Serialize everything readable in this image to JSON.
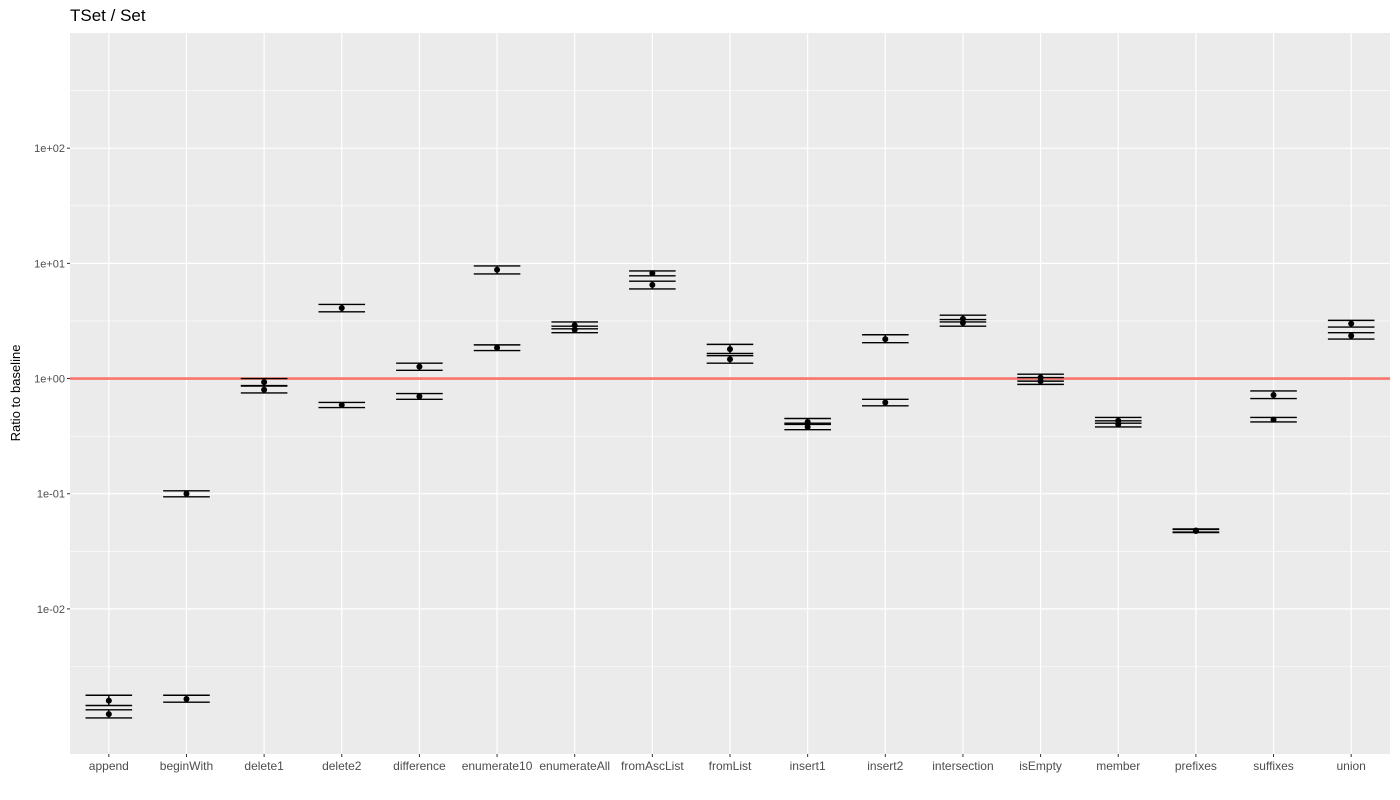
{
  "chart_data": {
    "type": "scatter",
    "title": "TSet / Set",
    "xlabel": "",
    "ylabel": "Ratio to baseline",
    "y_scale": "log10",
    "ylim": [
      0.00055,
      1000
    ],
    "y_ticks": [
      {
        "value": 0.01,
        "label": "1e-02"
      },
      {
        "value": 0.1,
        "label": "1e-01"
      },
      {
        "value": 1,
        "label": "1e+00"
      },
      {
        "value": 10,
        "label": "1e+01"
      },
      {
        "value": 100,
        "label": "1e+02"
      }
    ],
    "grid": true,
    "reference_line": {
      "y": 1,
      "color": "#F8766D"
    },
    "point_color": "#000000",
    "categories": [
      "append",
      "beginWith",
      "delete1",
      "delete2",
      "difference",
      "enumerate10",
      "enumerateAll",
      "fromAscList",
      "fromList",
      "insert1",
      "insert2",
      "intersection",
      "isEmpty",
      "member",
      "prefixes",
      "suffixes",
      "union"
    ],
    "points": [
      {
        "category": "append",
        "y": 0.0016,
        "ymin": 0.00145,
        "ymax": 0.00178
      },
      {
        "category": "append",
        "y": 0.00122,
        "ymin": 0.00113,
        "ymax": 0.00133
      },
      {
        "category": "beginWith",
        "y": 0.1,
        "ymin": 0.094,
        "ymax": 0.106
      },
      {
        "category": "beginWith",
        "y": 0.00165,
        "ymin": 0.00155,
        "ymax": 0.00178
      },
      {
        "category": "delete1",
        "y": 0.93,
        "ymin": 0.87,
        "ymax": 1.0
      },
      {
        "category": "delete1",
        "y": 0.8,
        "ymin": 0.75,
        "ymax": 0.86
      },
      {
        "category": "delete2",
        "y": 4.1,
        "ymin": 3.8,
        "ymax": 4.4
      },
      {
        "category": "delete2",
        "y": 0.59,
        "ymin": 0.56,
        "ymax": 0.62
      },
      {
        "category": "difference",
        "y": 1.27,
        "ymin": 1.18,
        "ymax": 1.36
      },
      {
        "category": "difference",
        "y": 0.7,
        "ymin": 0.66,
        "ymax": 0.74
      },
      {
        "category": "enumerate10",
        "y": 8.8,
        "ymin": 8.1,
        "ymax": 9.5
      },
      {
        "category": "enumerate10",
        "y": 1.85,
        "ymin": 1.75,
        "ymax": 1.96
      },
      {
        "category": "enumerateAll",
        "y": 2.9,
        "ymin": 2.7,
        "ymax": 3.1
      },
      {
        "category": "enumerateAll",
        "y": 2.65,
        "ymin": 2.5,
        "ymax": 2.85
      },
      {
        "category": "fromAscList",
        "y": 8.2,
        "ymin": 7.8,
        "ymax": 8.6
      },
      {
        "category": "fromAscList",
        "y": 6.5,
        "ymin": 6.0,
        "ymax": 7.0
      },
      {
        "category": "fromList",
        "y": 1.8,
        "ymin": 1.65,
        "ymax": 1.98
      },
      {
        "category": "fromList",
        "y": 1.47,
        "ymin": 1.36,
        "ymax": 1.58
      },
      {
        "category": "insert1",
        "y": 0.42,
        "ymin": 0.4,
        "ymax": 0.45
      },
      {
        "category": "insert1",
        "y": 0.38,
        "ymin": 0.36,
        "ymax": 0.41
      },
      {
        "category": "insert2",
        "y": 2.2,
        "ymin": 2.05,
        "ymax": 2.4
      },
      {
        "category": "insert2",
        "y": 0.62,
        "ymin": 0.58,
        "ymax": 0.66
      },
      {
        "category": "intersection",
        "y": 3.3,
        "ymin": 3.1,
        "ymax": 3.55
      },
      {
        "category": "intersection",
        "y": 3.05,
        "ymin": 2.85,
        "ymax": 3.25
      },
      {
        "category": "isEmpty",
        "y": 1.02,
        "ymin": 0.95,
        "ymax": 1.09
      },
      {
        "category": "isEmpty",
        "y": 0.95,
        "ymin": 0.89,
        "ymax": 1.02
      },
      {
        "category": "member",
        "y": 0.43,
        "ymin": 0.41,
        "ymax": 0.46
      },
      {
        "category": "member",
        "y": 0.4,
        "ymin": 0.38,
        "ymax": 0.43
      },
      {
        "category": "prefixes",
        "y": 0.048,
        "ymin": 0.0465,
        "ymax": 0.0495
      },
      {
        "category": "prefixes",
        "y": 0.0475,
        "ymin": 0.046,
        "ymax": 0.049
      },
      {
        "category": "suffixes",
        "y": 0.72,
        "ymin": 0.67,
        "ymax": 0.78
      },
      {
        "category": "suffixes",
        "y": 0.44,
        "ymin": 0.42,
        "ymax": 0.46
      },
      {
        "category": "union",
        "y": 3.0,
        "ymin": 2.8,
        "ymax": 3.2
      },
      {
        "category": "union",
        "y": 2.35,
        "ymin": 2.2,
        "ymax": 2.5
      }
    ]
  }
}
